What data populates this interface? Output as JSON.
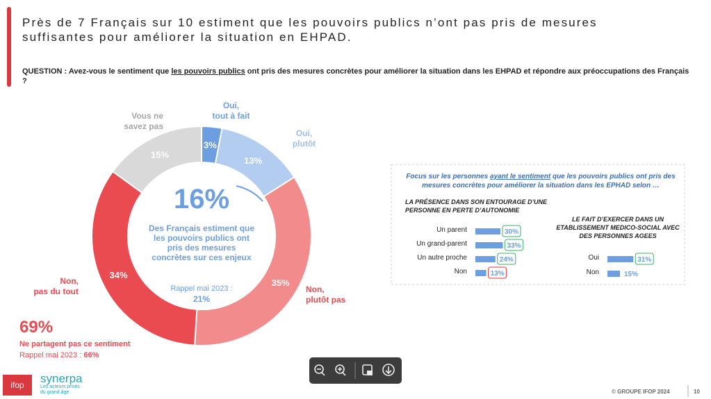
{
  "header": {
    "title_lines": [
      "Près de 7 Français sur 10 estiment que les pouvoirs publics n’ont pas pris de mesures",
      "suffisantes pour améliorer la situation en EHPAD."
    ],
    "question": [
      "QUESTION : Avez-vous le sentiment que ",
      "les pouvoirs publics",
      " ont pris des mesures concrètes pour améliorer la situation dans les EHPAD et répondre aux préoccupations des Français ?"
    ]
  },
  "chart_data": [
    {
      "type": "pie",
      "categories": [
        [
          "Oui,",
          "tout à fait"
        ],
        [
          "Oui,",
          "plutôt"
        ],
        [
          "Non,",
          "plutôt pas"
        ],
        [
          "Non,",
          "pas du tout"
        ],
        [
          "Vous ne",
          "savez pas"
        ]
      ],
      "values": [
        3,
        13,
        35,
        34,
        15
      ],
      "value_labels": [
        "3%",
        "13%",
        "35%",
        "34%",
        "15%"
      ],
      "colors": [
        "#6d9fe0",
        "#b3cdf0",
        "#f28b8b",
        "#e94b50",
        "#d9d9d9"
      ],
      "label_colors": [
        "#6d9fe0",
        "#9fbde8",
        "#e94b50",
        "#e94b50",
        "#a6a6a6"
      ],
      "center": {
        "value": "16%",
        "text": "Des Français estiment que les pouvoirs publics ont pris des mesures concrètes sur ces enjeux",
        "recall_label": "Rappel mai 2023 :",
        "recall_value": "21%"
      },
      "side_note": {
        "value": "69%",
        "text": "Ne partagent pas ce sentiment",
        "recall_label": "Rappel mai 2023 :",
        "recall_value": "66%"
      }
    },
    {
      "type": "bar",
      "title": "LA PRÉSENCE DANS SON ENTOURAGE D’UNE PERSONNE EN PERTE D’AUTONOMIE",
      "categories": [
        "Un parent",
        "Un grand-parent",
        "Un autre proche",
        "Non"
      ],
      "values": [
        30,
        33,
        24,
        13
      ],
      "value_labels": [
        "30%",
        "33%",
        "24%",
        "13%"
      ],
      "color": "#6d9fe0",
      "label_border_colors": [
        "#3cae6e",
        "#3cae6e",
        "#3cae6e",
        "#d9383e"
      ]
    },
    {
      "type": "bar",
      "title": "LE FAIT D’EXERCER DANS UN ETABLISSEMENT MEDICO-SOCIAL AVEC DES PERSONNES AGEES",
      "categories": [
        "Oui",
        "Non"
      ],
      "values": [
        31,
        15
      ],
      "value_labels": [
        "31%",
        "15%"
      ],
      "color": "#6d9fe0",
      "label_border_colors": [
        "#3cae6e",
        null
      ]
    }
  ],
  "focus": [
    "Focus sur les personnes ",
    "ayant le sentiment",
    " que les pouvoirs publics ont pris des mesures concrètes pour améliorer la situation dans les EPHAD selon …"
  ],
  "footer": {
    "copyright": "© GROUPE IFOP 2024",
    "page": "10",
    "logo_ifop": "ifop",
    "logo_synerpa": "synerpa",
    "tagline": "Les acteurs privés du grand âge"
  }
}
